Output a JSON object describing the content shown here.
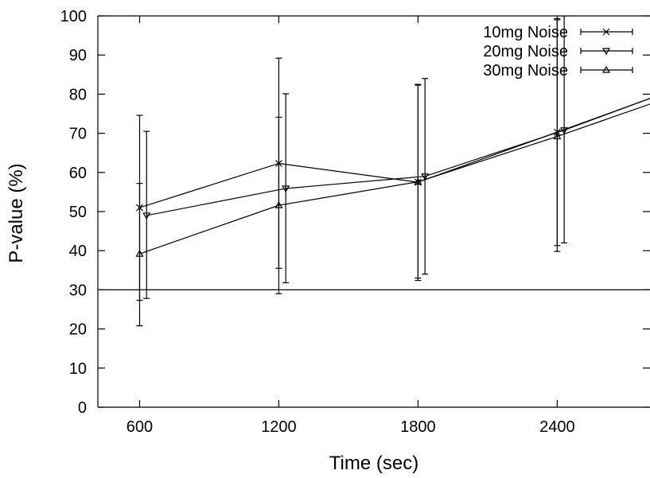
{
  "chart_data": {
    "type": "line",
    "title": "",
    "xlabel": "Time (sec)",
    "ylabel": "P-value (%)",
    "xticks": [
      600,
      1200,
      1800,
      2400
    ],
    "xlim": [
      420,
      2800
    ],
    "yticks": [
      0,
      10,
      20,
      30,
      40,
      50,
      60,
      70,
      80,
      90,
      100
    ],
    "ylim": [
      0,
      100
    ],
    "grid": false,
    "legend_position": "top-right",
    "reference_line": {
      "y": 30
    },
    "series": [
      {
        "name": "10mg Noise",
        "marker": "x",
        "x": [
          600,
          1200,
          1800,
          2400,
          2850
        ],
        "y": [
          51,
          62.3,
          57.5,
          70.3,
          80
        ],
        "err_low": [
          27.3,
          35.5,
          33,
          41.3,
          null
        ],
        "err_high": [
          74.6,
          89.2,
          82.5,
          99.3,
          null
        ]
      },
      {
        "name": "20mg Noise",
        "marker": "triangle-down",
        "x": [
          630,
          1230,
          1830,
          2430,
          2850
        ],
        "y": [
          49,
          55.9,
          59,
          70.8,
          80
        ],
        "err_low": [
          27.8,
          31.8,
          34,
          42,
          null
        ],
        "err_high": [
          70.5,
          80.1,
          84,
          100,
          null
        ]
      },
      {
        "name": "30mg Noise",
        "marker": "triangle-up",
        "x": [
          600,
          1200,
          1800,
          2400,
          2850
        ],
        "y": [
          39.2,
          51.6,
          57.6,
          69.2,
          78.5
        ],
        "err_low": [
          20.8,
          29,
          32.4,
          39.8,
          null
        ],
        "err_high": [
          57.2,
          74.1,
          82.3,
          99,
          null
        ]
      }
    ]
  }
}
